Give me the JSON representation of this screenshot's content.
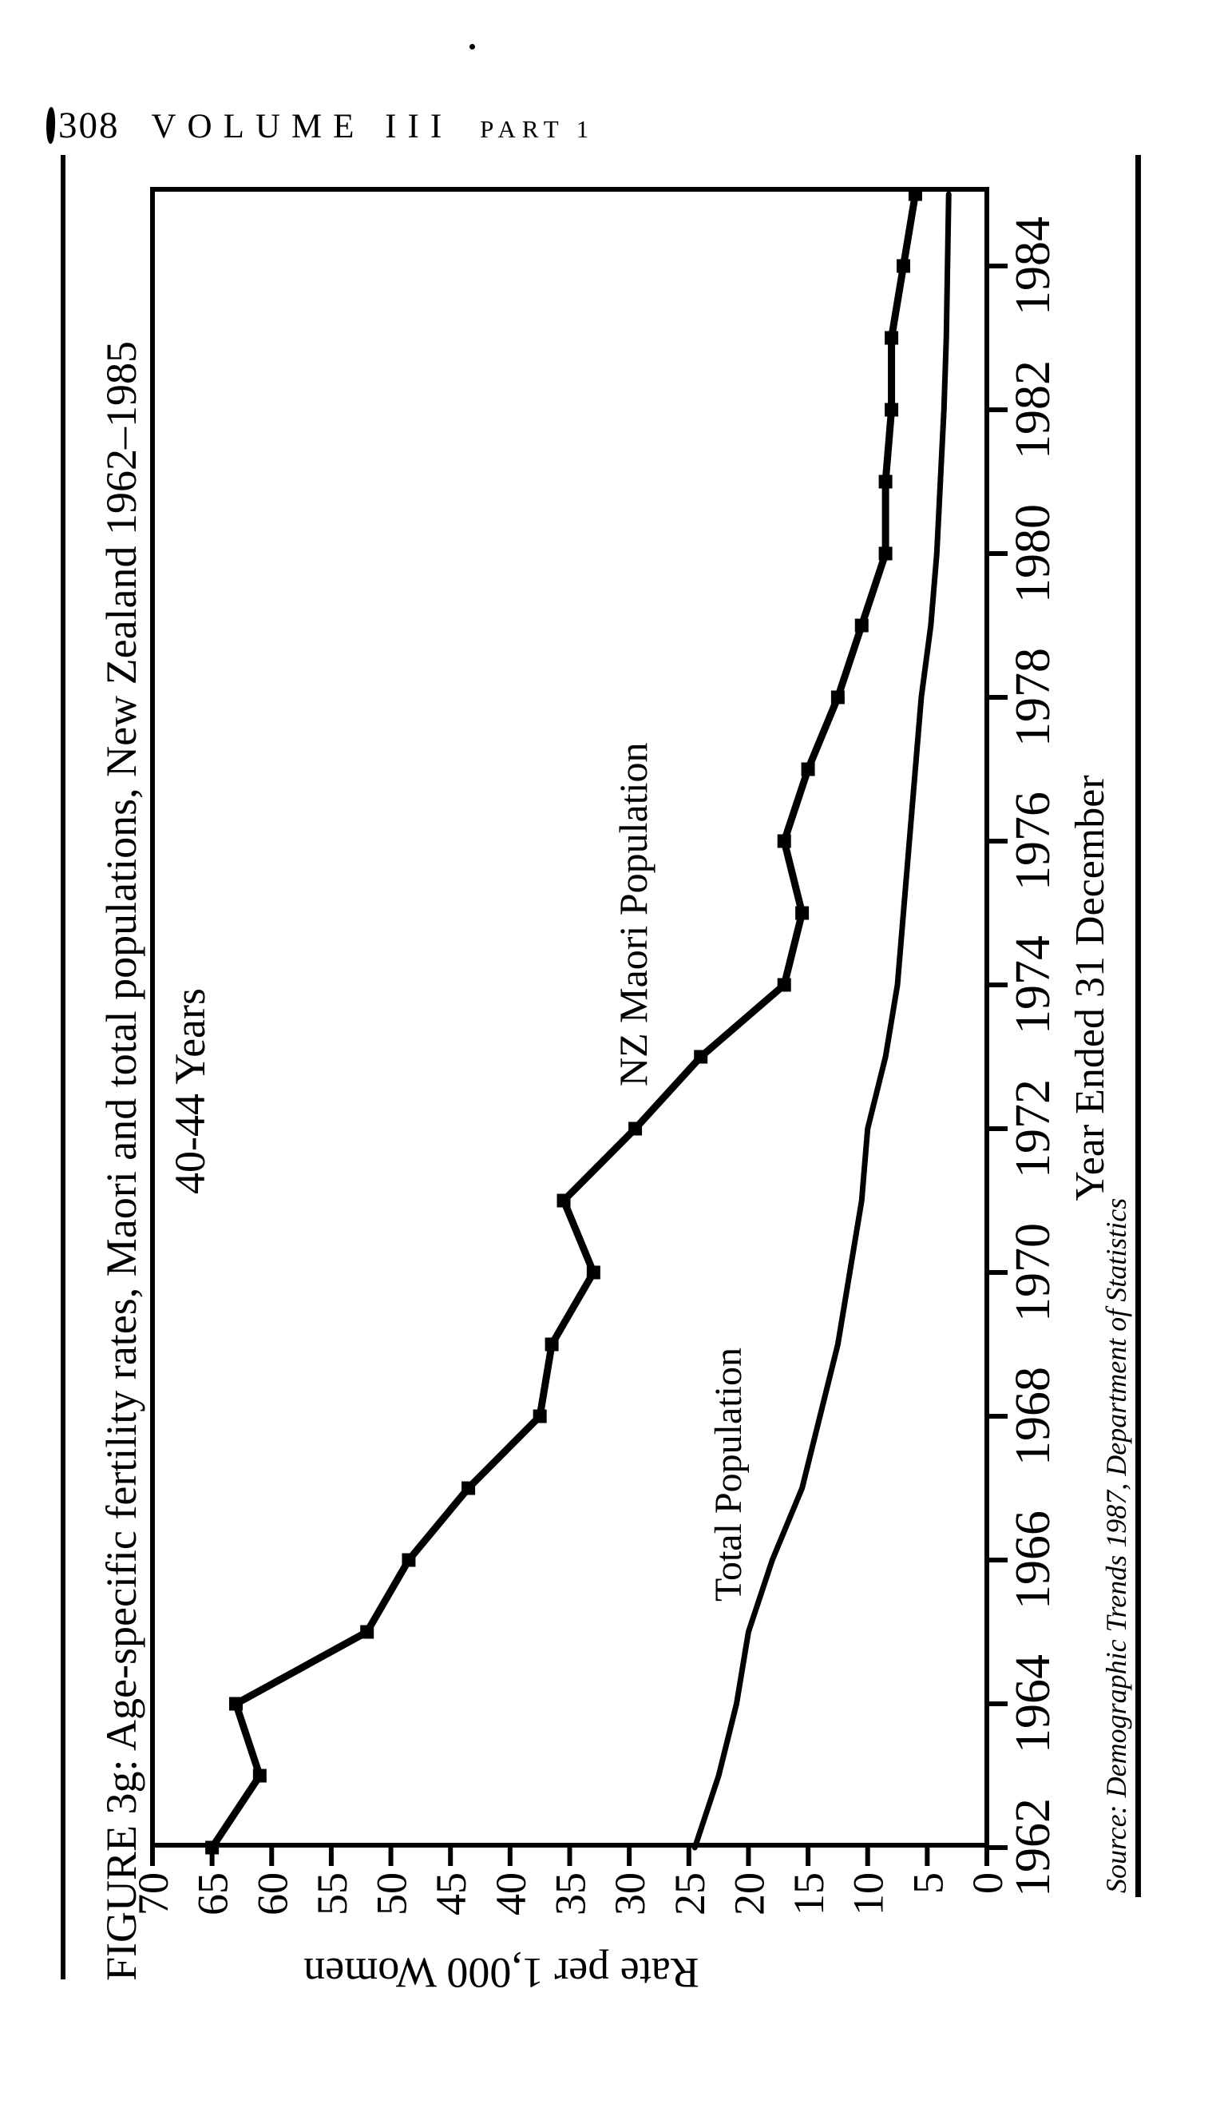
{
  "page": {
    "header": {
      "page_number": "308",
      "volume": "VOLUME III",
      "part": "PART",
      "part_number": "1"
    },
    "figure": {
      "caption": "FIGURE 3g: Age-specific fertility rates, Maori and total populations, New Zealand 1962–1985",
      "source": "Source: Demographic Trends 1987, Department of Statistics"
    }
  },
  "chart_data": {
    "type": "line",
    "title": "FIGURE 3g: Age-specific fertility rates, Maori and total populations, New Zealand 1962–1985",
    "annotation": "40-44 Years",
    "xlabel": "Year Ended 31 December",
    "ylabel": "Rate per 1,000 Women",
    "xlim": [
      1962,
      1985.3
    ],
    "ylim": [
      0,
      70
    ],
    "x": [
      1962,
      1963,
      1964,
      1965,
      1966,
      1967,
      1968,
      1969,
      1970,
      1971,
      1972,
      1973,
      1974,
      1975,
      1976,
      1977,
      1978,
      1979,
      1980,
      1981,
      1982,
      1983,
      1984,
      1985
    ],
    "x_ticks": [
      1962,
      1964,
      1966,
      1968,
      1970,
      1972,
      1974,
      1976,
      1978,
      1980,
      1982,
      1984
    ],
    "y_ticks": [
      0,
      5,
      10,
      15,
      20,
      25,
      30,
      35,
      40,
      45,
      50,
      55,
      60,
      65,
      70
    ],
    "grid": false,
    "legend_position": "labels-on-lines",
    "orientation_on_page": "rotated-90-ccw",
    "series": [
      {
        "name": "NZ Maori Population",
        "marker": "square",
        "values": [
          65,
          61,
          63,
          52,
          48.5,
          43.5,
          37.5,
          36.5,
          33,
          35.5,
          29.5,
          24,
          17,
          15.5,
          17,
          15,
          12.5,
          10.5,
          8.5,
          8.5,
          8,
          8,
          7,
          6
        ]
      },
      {
        "name": "Total Population",
        "marker": "none",
        "values": [
          24.5,
          22.5,
          21,
          20,
          18,
          15.5,
          14,
          12.5,
          11.5,
          10.5,
          10,
          8.5,
          7.5,
          7,
          6.5,
          6,
          5.5,
          4.7,
          4.2,
          3.9,
          3.6,
          3.4,
          3.3,
          3.2
        ]
      }
    ],
    "ink_color": "#000000",
    "paper_color": "#ffffff"
  }
}
